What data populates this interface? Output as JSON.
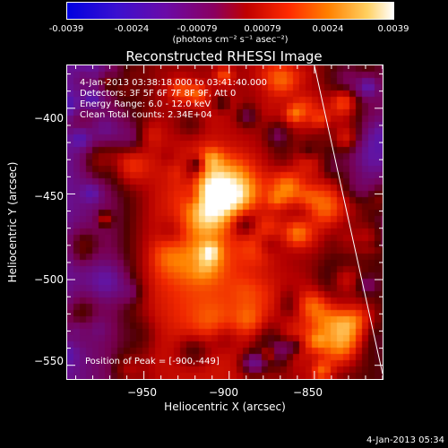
{
  "colorbar": {
    "ticks": [
      "-0.0039",
      "-0.0024",
      "-0.00079",
      "0.00079",
      "0.0024",
      "0.0039"
    ],
    "units": "(photons cm⁻² s⁻¹ asec⁻²)"
  },
  "chart_data": {
    "type": "heatmap",
    "title": "Reconstructed RHESSI Image",
    "xlabel": "Heliocentric X (arcsec)",
    "ylabel": "Heliocentric Y (arcsec)",
    "xlim": [
      -995,
      -810
    ],
    "ylim": [
      -558,
      -375
    ],
    "xticks": [
      -950,
      -900,
      -850
    ],
    "yticks": [
      -400,
      -450,
      -500,
      -550
    ],
    "xtick_labels": [
      "−950",
      "−900",
      "−850"
    ],
    "ytick_labels": [
      "−400",
      "−450",
      "−500",
      "−550"
    ],
    "color_range": [
      -0.0039,
      0.0039
    ],
    "peak": [
      -900,
      -449
    ],
    "limb_line": [
      [
        -850,
        -375
      ],
      [
        -810,
        -555
      ]
    ],
    "info_lines": [
      "4-Jan-2013 03:38:18.000 to 03:41:40.000",
      "Detectors: 3F 5F 6F 7F 8F 9F, Att 0",
      "Energy Range: 6.0 - 12.0 keV",
      "Clean     Total counts: 2.34E+04"
    ],
    "peak_label": "Position of Peak = [-900,-449]"
  },
  "footer": {
    "date": "4-Jan-2013 05:34"
  }
}
